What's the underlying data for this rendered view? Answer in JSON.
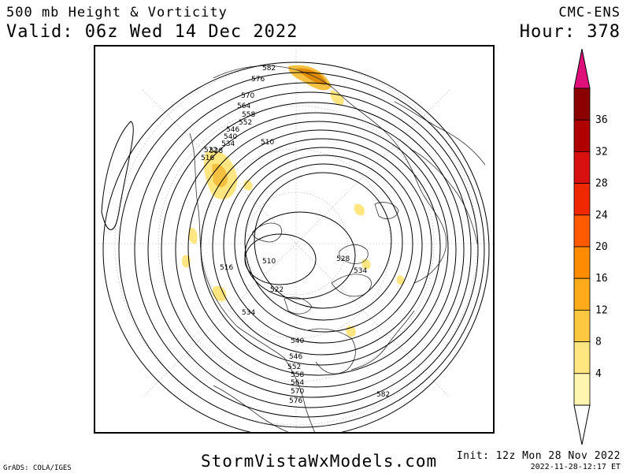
{
  "header": {
    "title_line1": "500 mb Height & Vorticity",
    "title_line2": "Valid: 06z Wed 14 Dec 2022",
    "model": "CMC-ENS",
    "hour": "Hour: 378"
  },
  "map": {
    "projection": "north-polar-stereographic",
    "contour_labels": [
      "582",
      "576",
      "570",
      "564",
      "558",
      "552",
      "546",
      "540",
      "534",
      "528",
      "522",
      "516",
      "510",
      "528",
      "534",
      "522",
      "534",
      "540",
      "546",
      "552",
      "558",
      "564",
      "570",
      "576",
      "582",
      "516",
      "510"
    ],
    "colors": {
      "contour": "#000000",
      "coast": "#222222",
      "grid": "#999999",
      "vort_low": "#ffe680",
      "vort_mid": "#f5c040",
      "vort_high": "#e08a00"
    }
  },
  "colorbar": {
    "ticks": [
      "36",
      "32",
      "28",
      "24",
      "20",
      "16",
      "12",
      "8",
      "4"
    ],
    "colors": [
      "#8b0000",
      "#b00000",
      "#d81010",
      "#f02800",
      "#ff5a00",
      "#ff8c00",
      "#ffaa1a",
      "#ffc840",
      "#ffe680",
      "#fff5b0"
    ],
    "top_arrow_color": "#e0107a"
  },
  "footer": {
    "grads": "GrADS: COLA/IGES",
    "site": "StormVistaWxModels.com",
    "init": "Init: 12z Mon 28 Nov 2022",
    "timestamp": "2022-11-28-12:17 ET"
  }
}
